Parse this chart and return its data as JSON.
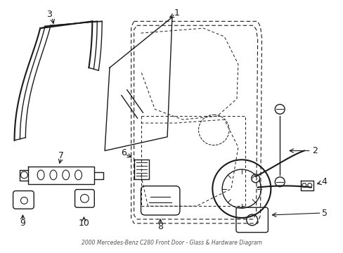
{
  "title": "2000 Mercedes-Benz C280 Front Door - Glass & Hardware Diagram",
  "background_color": "#ffffff",
  "line_color": "#1a1a1a",
  "fig_width": 4.89,
  "fig_height": 3.6,
  "dpi": 100
}
